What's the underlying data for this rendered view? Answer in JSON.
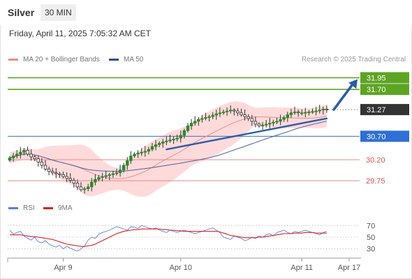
{
  "header": {
    "instrument": "Silver",
    "timeframe": "30 MIN",
    "timestamp": "Friday, April 11, 2025 7:05:32 AM CET",
    "credit": "Research © 2025 Trading Central"
  },
  "colors": {
    "resistance": "#5da423",
    "pivot": "#3a6fbf",
    "support": "#e88a8a",
    "current": "#333333",
    "candle": "#2a8a2a",
    "bollinger": "#ffcdcd",
    "ma20": "#e89090",
    "ma50": "#4a60a0",
    "rsi": "#6080e0",
    "rsi_ma": "#e02020",
    "arrow": "#2e5ca8"
  },
  "chart_data": [
    {
      "type": "candlestick",
      "legend": [
        {
          "name": "MA 20 + Bollinger Bands",
          "color": "#f28b8b"
        },
        {
          "name": "MA 50",
          "color": "#2e4f8f"
        }
      ],
      "x_ticks": [
        "Apr 9",
        "Apr 10",
        "Apr 11",
        "Apr 17"
      ],
      "ylim": [
        29.38,
        32.18
      ],
      "levels": [
        {
          "value": 31.95,
          "label": "31.95",
          "kind": "resistance"
        },
        {
          "value": 31.7,
          "label": "31.70",
          "kind": "resistance"
        },
        {
          "value": 31.27,
          "label": "31.27",
          "kind": "current"
        },
        {
          "value": 30.7,
          "label": "30.70",
          "kind": "pivot"
        },
        {
          "value": 30.2,
          "label": "30.20",
          "kind": "support"
        },
        {
          "value": 29.75,
          "label": "29.75",
          "kind": "support"
        }
      ],
      "close": [
        30.24,
        30.28,
        30.32,
        30.36,
        30.4,
        30.32,
        30.26,
        30.22,
        30.15,
        30.08,
        30.0,
        29.95,
        29.92,
        29.9,
        29.88,
        29.84,
        29.8,
        29.76,
        29.7,
        29.62,
        29.56,
        29.58,
        29.62,
        29.72,
        29.78,
        29.82,
        29.84,
        29.86,
        29.88,
        29.9,
        29.92,
        29.98,
        30.08,
        30.18,
        30.28,
        30.32,
        30.34,
        30.36,
        30.38,
        30.42,
        30.48,
        30.52,
        30.55,
        30.58,
        30.6,
        30.62,
        30.64,
        30.66,
        30.72,
        30.82,
        30.92,
        30.98,
        31.02,
        31.06,
        31.08,
        31.1,
        31.12,
        31.15,
        31.18,
        31.2,
        31.22,
        31.24,
        31.26,
        31.24,
        31.2,
        31.16,
        31.12,
        31.08,
        31.02,
        30.96,
        30.92,
        30.94,
        30.96,
        30.98,
        31.0,
        31.02,
        31.06,
        31.1,
        31.16,
        31.2,
        31.22,
        31.2,
        31.2,
        31.21,
        31.22,
        31.23,
        31.24,
        31.26,
        31.28,
        31.27
      ],
      "trendline": {
        "from_index": 44,
        "from_value": 30.42,
        "to_index": 89,
        "to_value": 31.08
      },
      "arrow": {
        "from_index": 91,
        "from_value": 31.27,
        "to_value": 31.95
      }
    },
    {
      "type": "line",
      "legend": [
        {
          "name": "RSI",
          "color": "#5b7be0"
        },
        {
          "name": "9MA",
          "color": "#e02020"
        }
      ],
      "ylim": [
        20,
        80
      ],
      "y_ticks": [
        "70",
        "50",
        "30"
      ],
      "series": [
        {
          "name": "RSI",
          "values": [
            62,
            55,
            58,
            60,
            52,
            48,
            45,
            50,
            42,
            40,
            44,
            38,
            35,
            33,
            36,
            30,
            34,
            31,
            28,
            26,
            30,
            35,
            45,
            50,
            48,
            55,
            58,
            60,
            62,
            65,
            68,
            66,
            64,
            62,
            68,
            67,
            65,
            70,
            68,
            66,
            64,
            66,
            62,
            60,
            58,
            62,
            60,
            58,
            60,
            62,
            60,
            58,
            56,
            58,
            60,
            62,
            64,
            66,
            62,
            58,
            50,
            48,
            46,
            52,
            50,
            48,
            44,
            46,
            50,
            48,
            52,
            50,
            54,
            56,
            52,
            58,
            60,
            62,
            58,
            56,
            60,
            58,
            60,
            62,
            60,
            58,
            56,
            54,
            58,
            60
          ]
        },
        {
          "name": "9MA",
          "values": [
            54,
            54,
            54,
            54,
            53,
            52,
            51,
            51,
            50,
            49,
            48,
            47,
            46,
            44,
            42,
            40,
            38,
            37,
            36,
            35,
            34,
            34,
            35,
            36,
            38,
            41,
            44,
            47,
            50,
            53,
            56,
            58,
            60,
            61,
            62,
            63,
            63,
            64,
            64,
            64,
            64,
            64,
            64,
            63,
            63,
            62,
            62,
            61,
            61,
            60,
            60,
            60,
            60,
            60,
            60,
            60,
            60,
            60,
            60,
            59,
            57,
            55,
            53,
            52,
            51,
            50,
            49,
            49,
            49,
            49,
            50,
            50,
            51,
            52,
            53,
            54,
            55,
            56,
            56,
            56,
            57,
            57,
            57,
            58,
            58,
            58,
            57,
            57,
            57,
            57
          ]
        }
      ]
    }
  ]
}
